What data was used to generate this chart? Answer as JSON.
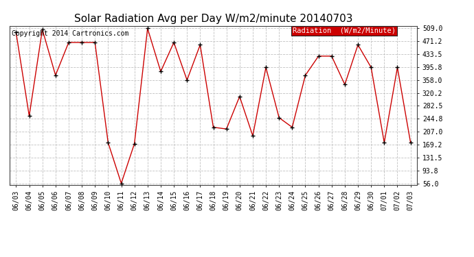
{
  "title": "Solar Radiation Avg per Day W/m2/minute 20140703",
  "copyright": "Copyright 2014 Cartronics.com",
  "legend_label": "Radiation  (W/m2/Minute)",
  "dates": [
    "06/03",
    "06/04",
    "06/05",
    "06/06",
    "06/07",
    "06/08",
    "06/09",
    "06/10",
    "06/11",
    "06/12",
    "06/13",
    "06/14",
    "06/15",
    "06/16",
    "06/17",
    "06/18",
    "06/19",
    "06/20",
    "06/21",
    "06/22",
    "06/23",
    "06/24",
    "06/25",
    "06/26",
    "06/27",
    "06/28",
    "06/29",
    "06/30",
    "07/01",
    "07/02",
    "07/03"
  ],
  "values": [
    497,
    253,
    506,
    372,
    468,
    468,
    468,
    175,
    56,
    172,
    509,
    383,
    468,
    358,
    461,
    220,
    215,
    310,
    195,
    395,
    248,
    220,
    372,
    428,
    428,
    345,
    461,
    395,
    175,
    395,
    175
  ],
  "yticks": [
    56.0,
    93.8,
    131.5,
    169.2,
    207.0,
    244.8,
    282.5,
    320.2,
    358.0,
    395.8,
    433.5,
    471.2,
    509.0
  ],
  "line_color": "#cc0000",
  "marker_color": "#000000",
  "background_color": "#ffffff",
  "grid_color": "#c0c0c0",
  "legend_bg": "#cc0000",
  "legend_text_color": "#ffffff",
  "title_fontsize": 11,
  "copyright_fontsize": 7,
  "legend_fontsize": 7.5,
  "tick_fontsize": 7,
  "yaxis_fontsize": 7,
  "figwidth": 6.9,
  "figheight": 3.75,
  "dpi": 100
}
